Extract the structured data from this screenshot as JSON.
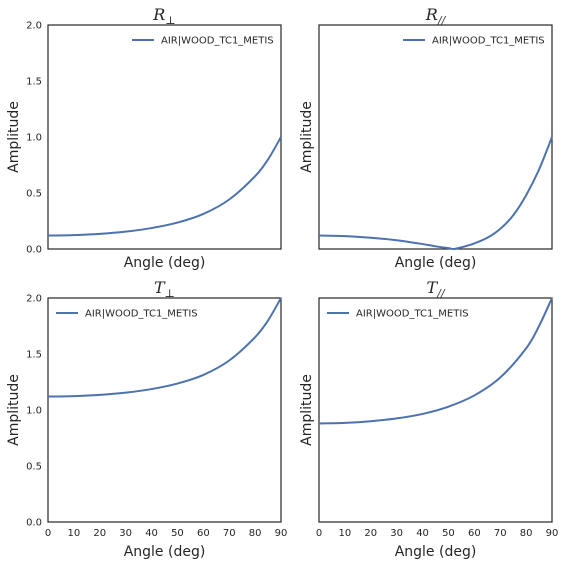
{
  "chart_data": [
    {
      "type": "line",
      "title": "R⊥",
      "title_main": "R",
      "title_sub": "⊥",
      "xlabel": "Angle (deg)",
      "ylabel": "Amplitude",
      "xlim": [
        0,
        90
      ],
      "ylim": [
        0,
        2
      ],
      "xticks": [],
      "yticks": [
        "0.0",
        "0.5",
        "1.0",
        "1.5",
        "2.0"
      ],
      "legend": "top-right",
      "series": [
        {
          "name": "AIR|WOOD_TC1_METIS",
          "color": "#4c72b0",
          "x": [
            0,
            10,
            20,
            30,
            40,
            50,
            60,
            70,
            80,
            85,
            90
          ],
          "y": [
            0.12,
            0.124,
            0.135,
            0.155,
            0.187,
            0.236,
            0.313,
            0.442,
            0.65,
            0.8,
            1.0
          ]
        }
      ]
    },
    {
      "type": "line",
      "title": "R//",
      "title_main": "R",
      "title_sub": "//",
      "xlabel": "Angle (deg)",
      "ylabel": "Amplitude",
      "xlim": [
        0,
        90
      ],
      "ylim": [
        0,
        2
      ],
      "xticks": [],
      "yticks": [],
      "legend": "top-right",
      "series": [
        {
          "name": "AIR|WOOD_TC1_METIS",
          "color": "#4c72b0",
          "x": [
            0,
            10,
            20,
            30,
            40,
            45,
            50,
            52,
            55,
            60,
            65,
            70,
            75,
            80,
            85,
            90
          ],
          "y": [
            0.12,
            0.115,
            0.1,
            0.078,
            0.044,
            0.024,
            0.008,
            0.0,
            0.015,
            0.05,
            0.1,
            0.18,
            0.3,
            0.48,
            0.71,
            1.0
          ]
        }
      ]
    },
    {
      "type": "line",
      "title": "T⊥",
      "title_main": "T",
      "title_sub": "⊥",
      "xlabel": "Angle (deg)",
      "ylabel": "Amplitude",
      "xlim": [
        0,
        90
      ],
      "ylim": [
        0,
        2
      ],
      "xticks": [
        "0",
        "10",
        "20",
        "30",
        "40",
        "50",
        "60",
        "70",
        "80",
        "90"
      ],
      "yticks": [
        "0.0",
        "0.5",
        "1.0",
        "1.5",
        "2.0"
      ],
      "legend": "top-left",
      "series": [
        {
          "name": "AIR|WOOD_TC1_METIS",
          "color": "#4c72b0",
          "x": [
            0,
            10,
            20,
            30,
            40,
            50,
            60,
            70,
            80,
            85,
            90
          ],
          "y": [
            1.12,
            1.124,
            1.135,
            1.155,
            1.187,
            1.236,
            1.313,
            1.442,
            1.65,
            1.8,
            2.0
          ]
        }
      ]
    },
    {
      "type": "line",
      "title": "T//",
      "title_main": "T",
      "title_sub": "//",
      "xlabel": "Angle (deg)",
      "ylabel": "Amplitude",
      "xlim": [
        0,
        90
      ],
      "ylim": [
        0,
        2
      ],
      "xticks": [
        "0",
        "10",
        "20",
        "30",
        "40",
        "50",
        "60",
        "70",
        "80",
        "90"
      ],
      "yticks": [],
      "legend": "top-left",
      "series": [
        {
          "name": "AIR|WOOD_TC1_METIS",
          "color": "#4c72b0",
          "x": [
            0,
            10,
            20,
            30,
            40,
            50,
            60,
            70,
            80,
            85,
            90
          ],
          "y": [
            0.88,
            0.885,
            0.9,
            0.925,
            0.965,
            1.03,
            1.13,
            1.29,
            1.55,
            1.75,
            2.0
          ]
        }
      ]
    }
  ]
}
